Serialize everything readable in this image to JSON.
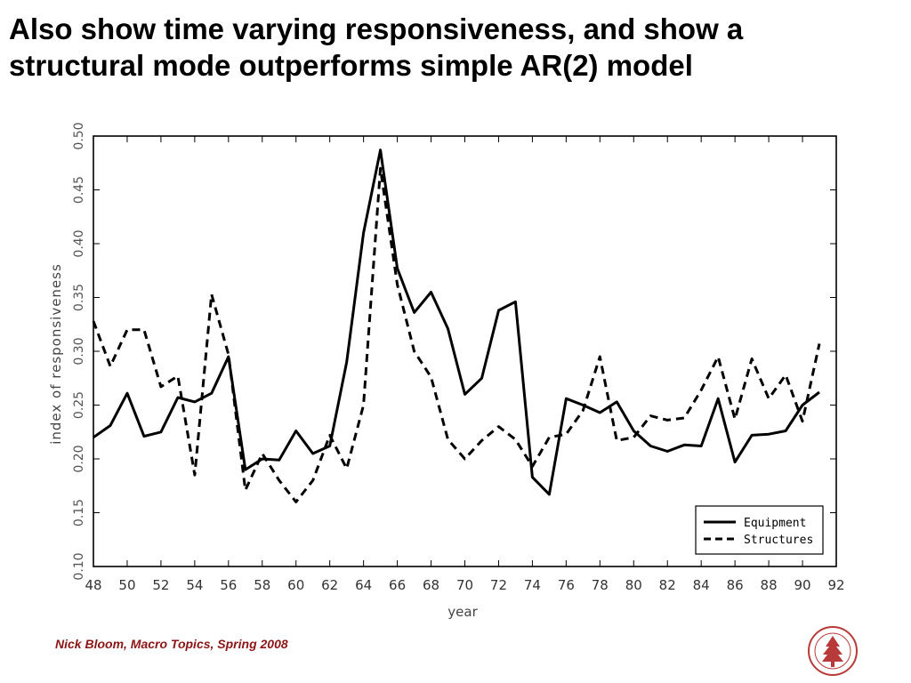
{
  "slide": {
    "title_line1": "Also show time varying responsiveness, and show a",
    "title_line2": "structural mode outperforms simple AR(2) model",
    "footer": "Nick Bloom, Macro Topics, Spring 2008",
    "seal": {
      "icon": "stanford-seal-icon",
      "color": "#b83a3a"
    }
  },
  "chart_data": {
    "type": "line",
    "xlabel": "year",
    "ylabel": "index of responsiveness",
    "xlim": [
      48,
      92
    ],
    "ylim": [
      0.1,
      0.5
    ],
    "x_ticks": [
      "48",
      "50",
      "52",
      "54",
      "56",
      "58",
      "60",
      "62",
      "64",
      "66",
      "68",
      "70",
      "72",
      "74",
      "76",
      "78",
      "80",
      "82",
      "84",
      "86",
      "88",
      "90",
      "92"
    ],
    "y_ticks": [
      "0.10",
      "0.15",
      "0.20",
      "0.25",
      "0.30",
      "0.35",
      "0.40",
      "0.45",
      "0.50"
    ],
    "grid": false,
    "legend_position": "bottom-right",
    "x": [
      48,
      49,
      50,
      51,
      52,
      53,
      54,
      55,
      56,
      57,
      58,
      59,
      60,
      61,
      62,
      63,
      64,
      65,
      66,
      67,
      68,
      69,
      70,
      71,
      72,
      73,
      74,
      75,
      76,
      77,
      78,
      79,
      80,
      81,
      82,
      83,
      84,
      85,
      86,
      87,
      88,
      89,
      90,
      91
    ],
    "series": [
      {
        "name": "Equipment",
        "style": "solid",
        "color": "#000000",
        "values": [
          0.22,
          0.231,
          0.261,
          0.221,
          0.225,
          0.257,
          0.253,
          0.261,
          0.295,
          0.19,
          0.2,
          0.199,
          0.226,
          0.205,
          0.212,
          0.29,
          0.41,
          0.487,
          0.377,
          0.336,
          0.355,
          0.321,
          0.26,
          0.275,
          0.338,
          0.346,
          0.183,
          0.167,
          0.256,
          0.25,
          0.243,
          0.253,
          0.226,
          0.212,
          0.207,
          0.213,
          0.212,
          0.256,
          0.197,
          0.222,
          0.223,
          0.226,
          0.25,
          0.262
        ]
      },
      {
        "name": "Structures",
        "style": "dashed",
        "color": "#000000",
        "values": [
          0.328,
          0.286,
          0.32,
          0.32,
          0.267,
          0.277,
          0.185,
          0.353,
          0.297,
          0.171,
          0.205,
          0.18,
          0.16,
          0.18,
          0.222,
          0.191,
          0.25,
          0.47,
          0.362,
          0.3,
          0.276,
          0.218,
          0.2,
          0.217,
          0.23,
          0.218,
          0.193,
          0.22,
          0.223,
          0.245,
          0.295,
          0.217,
          0.22,
          0.24,
          0.236,
          0.238,
          0.264,
          0.295,
          0.237,
          0.293,
          0.256,
          0.278,
          0.235,
          0.307
        ]
      }
    ]
  }
}
